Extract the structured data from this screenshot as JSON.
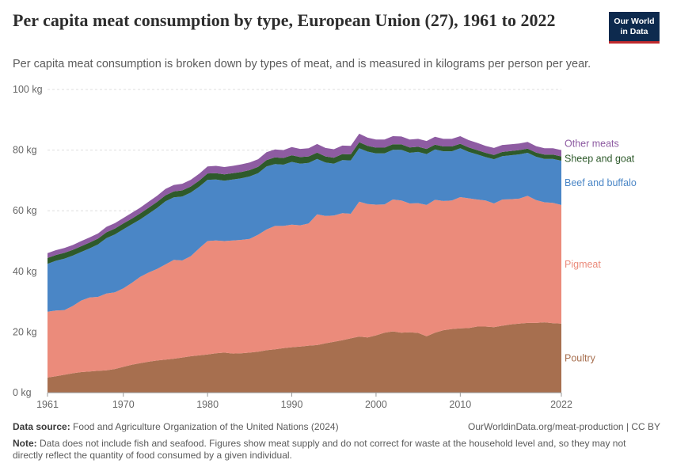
{
  "header": {
    "title": "Per capita meat consumption by type, European Union (27), 1961 to 2022",
    "subtitle": "Per capita meat consumption is broken down by types of meat, and is measured in kilograms per person per year.",
    "logo_line1": "Our World",
    "logo_line2": "in Data"
  },
  "footer": {
    "source_label": "Data source:",
    "source_text": "Food and Agriculture Organization of the United Nations (2024)",
    "license": "OurWorldinData.org/meat-production | CC BY",
    "note_label": "Note:",
    "note_text": "Data does not include fish and seafood. Figures show meat supply and do not correct for waste at the household level and, so they may not directly reflect the quantity of food consumed by a given individual."
  },
  "chart_data": {
    "type": "area",
    "stacked": true,
    "x": [
      1961,
      1962,
      1963,
      1964,
      1965,
      1966,
      1967,
      1968,
      1969,
      1970,
      1971,
      1972,
      1973,
      1974,
      1975,
      1976,
      1977,
      1978,
      1979,
      1980,
      1981,
      1982,
      1983,
      1984,
      1985,
      1986,
      1987,
      1988,
      1989,
      1990,
      1991,
      1992,
      1993,
      1994,
      1995,
      1996,
      1997,
      1998,
      1999,
      2000,
      2001,
      2002,
      2003,
      2004,
      2005,
      2006,
      2007,
      2008,
      2009,
      2010,
      2011,
      2012,
      2013,
      2014,
      2015,
      2016,
      2017,
      2018,
      2019,
      2020,
      2021,
      2022
    ],
    "x_ticks": [
      1961,
      1970,
      1980,
      1990,
      2000,
      2010,
      2022
    ],
    "y_ticks": [
      "0 kg",
      "20 kg",
      "40 kg",
      "60 kg",
      "80 kg",
      "100 kg"
    ],
    "ylim": [
      0,
      100
    ],
    "series": [
      {
        "name": "Poultry",
        "color": "#a76f4f",
        "values": [
          5,
          5.4,
          5.9,
          6.4,
          6.8,
          7,
          7.2,
          7.4,
          7.8,
          8.5,
          9.2,
          9.7,
          10.2,
          10.6,
          10.9,
          11.2,
          11.6,
          12,
          12.3,
          12.6,
          13,
          13.2,
          12.9,
          13,
          13.2,
          13.5,
          14,
          14.3,
          14.7,
          15,
          15.2,
          15.5,
          15.7,
          16.3,
          16.8,
          17.3,
          17.9,
          18.5,
          18.2,
          18.9,
          19.8,
          20.2,
          19.8,
          19.9,
          19.7,
          18.6,
          19.8,
          20.6,
          21,
          21.2,
          21.3,
          21.8,
          21.8,
          21.6,
          22.1,
          22.5,
          22.8,
          23,
          23,
          23.2,
          22.9,
          22.8
        ]
      },
      {
        "name": "Pigmeat",
        "color": "#eb8b7b",
        "values": [
          21.7,
          21.7,
          21.3,
          22.2,
          23.6,
          24.4,
          24.4,
          25.3,
          25.3,
          25.9,
          27,
          28.5,
          29.4,
          30.2,
          31.4,
          32.6,
          32,
          33,
          35.3,
          37.4,
          37.2,
          36.8,
          37.3,
          37.4,
          37.5,
          38.6,
          39.8,
          40.7,
          40.3,
          40.4,
          40,
          40.3,
          43.1,
          42,
          41.6,
          41.9,
          41.1,
          44.5,
          44,
          43.1,
          42.3,
          43.5,
          43.6,
          42.5,
          42.8,
          43.3,
          43.8,
          42.6,
          42.4,
          43.3,
          42.8,
          41.9,
          41.6,
          40.8,
          41.6,
          41.3,
          41.2,
          41.9,
          40.5,
          39.6,
          39.7,
          39.1
        ]
      },
      {
        "name": "Beef and buffalo",
        "color": "#4a86c6",
        "values": [
          15.8,
          16.4,
          17,
          16.6,
          16,
          16.2,
          17.3,
          18.3,
          19.1,
          19.5,
          19.3,
          18.9,
          19.4,
          20.1,
          20.8,
          20.6,
          21.1,
          21,
          20.3,
          20.2,
          20.1,
          19.9,
          20.1,
          20.3,
          20.6,
          20.3,
          20.8,
          20.4,
          20.2,
          20.7,
          20.3,
          20,
          18.3,
          17.6,
          17.1,
          17.5,
          17.6,
          17.6,
          17.3,
          16.9,
          16.8,
          16.4,
          16.7,
          16.7,
          16.9,
          16.8,
          16.6,
          16.4,
          16.2,
          16.1,
          15.3,
          14.9,
          14.3,
          14.6,
          14.3,
          14.5,
          14.6,
          14.2,
          14.3,
          14.3,
          14.5,
          14.6
        ]
      },
      {
        "name": "Sheep and goat",
        "color": "#2e5a2b",
        "values": [
          1.9,
          1.9,
          1.9,
          1.9,
          1.9,
          1.9,
          1.9,
          1.9,
          1.9,
          1.9,
          1.9,
          2,
          2,
          2,
          2,
          2,
          2,
          2,
          2,
          2.1,
          2.1,
          2.1,
          2.1,
          2.1,
          2.1,
          2.1,
          2.1,
          2.2,
          2.2,
          2.2,
          2.2,
          2.1,
          2.1,
          2,
          2,
          2,
          2,
          2,
          1.9,
          1.9,
          1.9,
          1.8,
          1.8,
          1.8,
          1.7,
          1.7,
          1.6,
          1.6,
          1.6,
          1.5,
          1.5,
          1.4,
          1.4,
          1.4,
          1.4,
          1.4,
          1.4,
          1.4,
          1.4,
          1.4,
          1.4,
          1.4
        ]
      },
      {
        "name": "Other meats",
        "color": "#8e5ca2",
        "values": [
          1.6,
          1.6,
          1.6,
          1.6,
          1.7,
          1.7,
          1.7,
          1.8,
          1.8,
          1.8,
          1.9,
          1.9,
          2,
          2,
          2.1,
          2.1,
          2.2,
          2.2,
          2.3,
          2.3,
          2.4,
          2.4,
          2.4,
          2.5,
          2.5,
          2.5,
          2.6,
          2.6,
          2.6,
          2.7,
          2.7,
          2.7,
          2.8,
          2.8,
          2.8,
          2.8,
          2.8,
          2.8,
          2.7,
          2.7,
          2.7,
          2.7,
          2.6,
          2.6,
          2.6,
          2.6,
          2.6,
          2.5,
          2.5,
          2.5,
          2.4,
          2.4,
          2.3,
          2.3,
          2.3,
          2.2,
          2.2,
          2.2,
          2.1,
          2.1,
          2.1,
          2.1
        ]
      }
    ]
  }
}
